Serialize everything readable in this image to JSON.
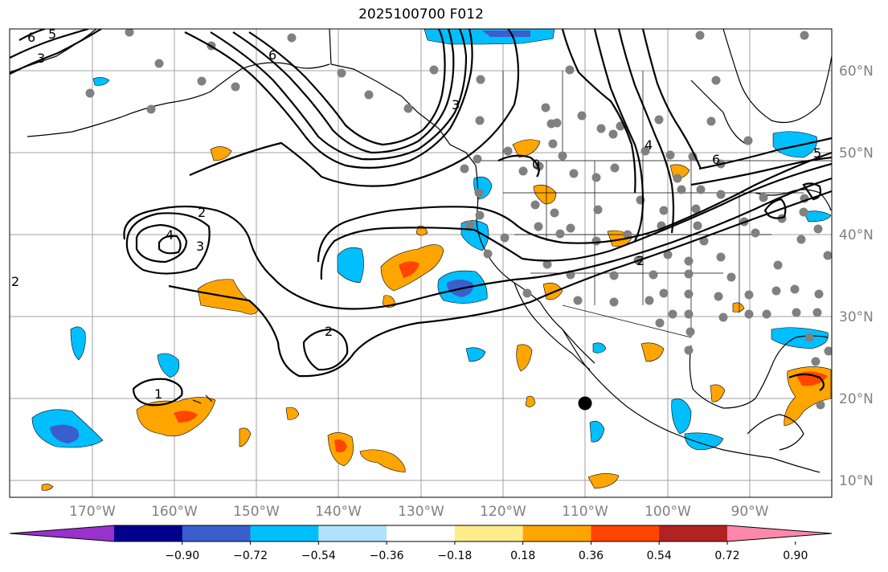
{
  "title": "2025100700 F012",
  "lat_labels": [
    "60°N",
    "50°N",
    "40°N",
    "30°N",
    "20°N",
    "10°N"
  ],
  "lon_labels": [
    "170°W",
    "160°W",
    "150°W",
    "140°W",
    "130°W",
    "120°W",
    "110°W",
    "100°W",
    "90°W"
  ],
  "contour_labels": [
    "2",
    "4",
    "3",
    "2",
    "1",
    "6",
    "3",
    "6",
    "4",
    "5",
    "2",
    "0",
    "6",
    "5",
    "3",
    "2"
  ],
  "colorbar": {
    "ticks": [
      "−0.90",
      "−0.72",
      "−0.54",
      "−0.36",
      "−0.18",
      "0.18",
      "0.36",
      "0.54",
      "0.72",
      "0.90"
    ],
    "colors": [
      "#9932cc",
      "#00008b",
      "#3a5fcd",
      "#00bfff",
      "#b0e2ff",
      "#ffffff",
      "#ffec8b",
      "#ffa500",
      "#ff4500",
      "#b22222",
      "#ff88aa"
    ]
  },
  "palette": {
    "warm1": "#ffa500",
    "warm2": "#ff4500",
    "cool1": "#00bfff",
    "cool2": "#3a5fcd",
    "station": "#808080",
    "grid": "#a0a0a0"
  },
  "marker": "black-dot"
}
